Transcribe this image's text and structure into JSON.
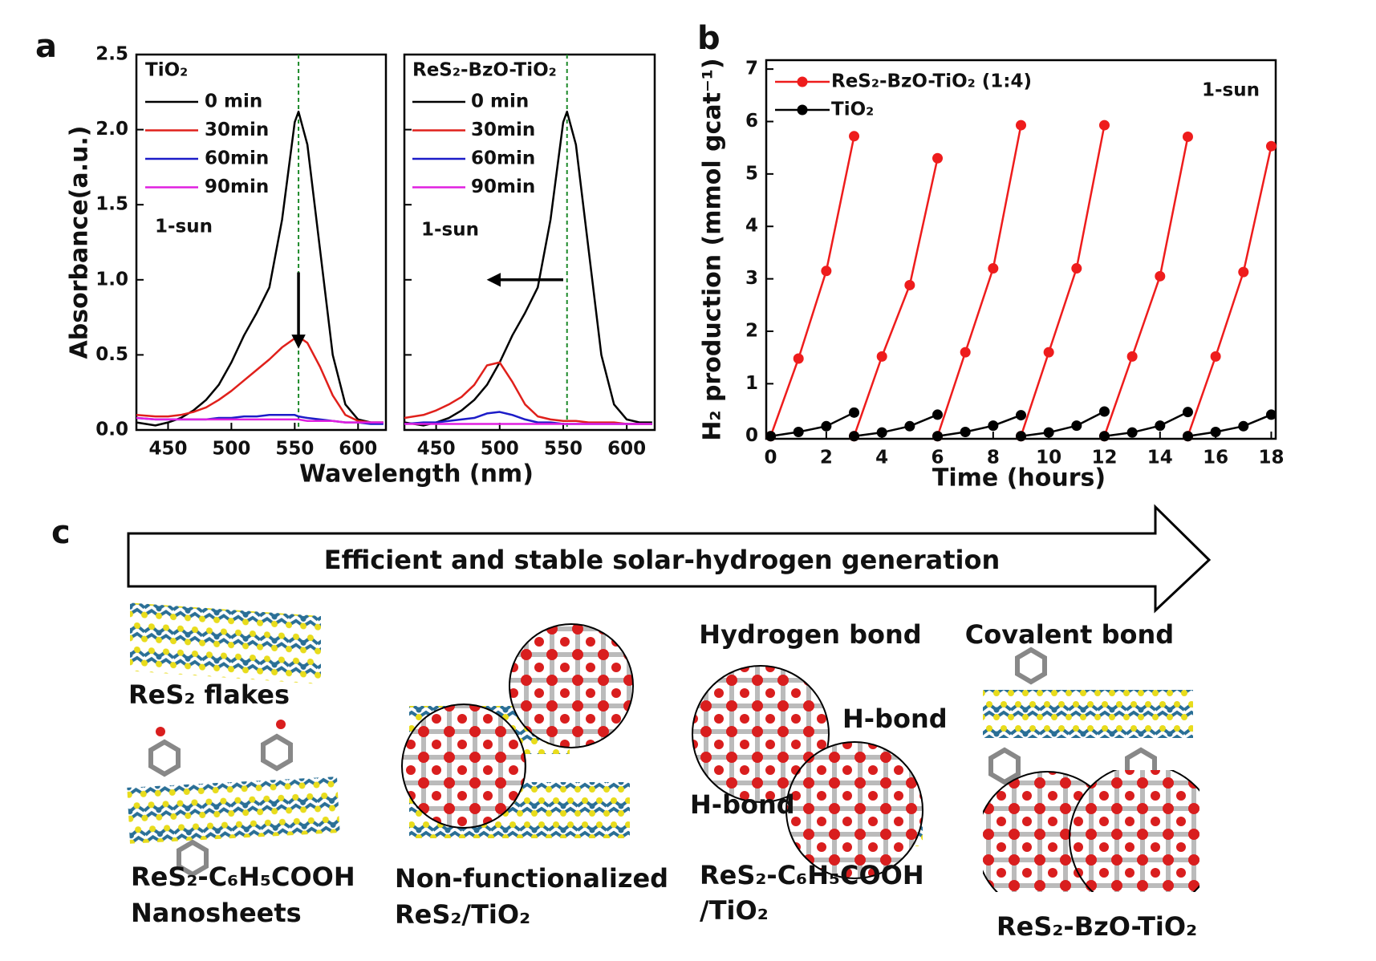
{
  "chart_data": [
    {
      "type": "line",
      "panel_label": "a",
      "title": "TiO₂",
      "annotation": "1-sun",
      "ylabel": "Absorbance(a.u.)",
      "xlabel": "Wavelength (nm)",
      "x": [
        425,
        440,
        450,
        460,
        470,
        480,
        490,
        500,
        510,
        520,
        530,
        540,
        550,
        553,
        560,
        570,
        580,
        590,
        600,
        610,
        620
      ],
      "series": [
        {
          "name": "0 min",
          "color": "#000000",
          "values": [
            0.05,
            0.03,
            0.05,
            0.08,
            0.13,
            0.2,
            0.3,
            0.45,
            0.63,
            0.78,
            0.95,
            1.4,
            2.05,
            2.12,
            1.9,
            1.2,
            0.5,
            0.17,
            0.07,
            0.05,
            0.05
          ]
        },
        {
          "name": "30min",
          "color": "#e0201b",
          "values": [
            0.1,
            0.09,
            0.09,
            0.1,
            0.12,
            0.15,
            0.2,
            0.26,
            0.33,
            0.4,
            0.47,
            0.55,
            0.61,
            0.62,
            0.58,
            0.42,
            0.23,
            0.1,
            0.06,
            0.05,
            0.05
          ]
        },
        {
          "name": "60min",
          "color": "#1c1cc8",
          "values": [
            0.08,
            0.07,
            0.07,
            0.07,
            0.07,
            0.07,
            0.08,
            0.08,
            0.09,
            0.09,
            0.1,
            0.1,
            0.1,
            0.09,
            0.08,
            0.07,
            0.06,
            0.05,
            0.05,
            0.04,
            0.04
          ]
        },
        {
          "name": "90min",
          "color": "#e020e0",
          "values": [
            0.08,
            0.07,
            0.07,
            0.07,
            0.07,
            0.07,
            0.07,
            0.07,
            0.07,
            0.07,
            0.07,
            0.07,
            0.07,
            0.07,
            0.06,
            0.06,
            0.06,
            0.05,
            0.05,
            0.05,
            0.05
          ]
        }
      ],
      "reference_x": 553,
      "arrow": {
        "x": [
          553,
          553
        ],
        "y": [
          1.05,
          0.56
        ]
      },
      "xlim": [
        425,
        622
      ],
      "xticks": [
        450,
        500,
        550,
        600
      ],
      "ylim": [
        0,
        2.5
      ],
      "yticks": [
        {
          "value": 0,
          "label": "0.0"
        },
        0.5,
        {
          "value": 1,
          "label": "1.0"
        },
        1.5,
        {
          "value": 2,
          "label": "2.0"
        },
        2.5
      ],
      "show_ytick_labels": true,
      "legend": "upper left"
    },
    {
      "type": "line",
      "title": "ReS₂-BzO-TiO₂",
      "annotation": "1-sun",
      "x": [
        425,
        440,
        450,
        460,
        470,
        480,
        490,
        500,
        510,
        520,
        530,
        540,
        550,
        553,
        560,
        570,
        580,
        590,
        600,
        610,
        620
      ],
      "series": [
        {
          "name": "0 min",
          "color": "#000000",
          "values": [
            0.05,
            0.03,
            0.05,
            0.08,
            0.13,
            0.2,
            0.3,
            0.45,
            0.63,
            0.78,
            0.95,
            1.4,
            2.05,
            2.12,
            1.9,
            1.2,
            0.5,
            0.17,
            0.07,
            0.05,
            0.05
          ]
        },
        {
          "name": "30min",
          "color": "#e0201b",
          "values": [
            0.08,
            0.1,
            0.13,
            0.17,
            0.22,
            0.3,
            0.43,
            0.45,
            0.32,
            0.17,
            0.09,
            0.07,
            0.06,
            0.06,
            0.06,
            0.05,
            0.05,
            0.05,
            0.04,
            0.04,
            0.04
          ]
        },
        {
          "name": "60min",
          "color": "#1c1cc8",
          "values": [
            0.04,
            0.05,
            0.05,
            0.06,
            0.07,
            0.08,
            0.11,
            0.12,
            0.1,
            0.07,
            0.05,
            0.05,
            0.04,
            0.04,
            0.04,
            0.04,
            0.04,
            0.04,
            0.04,
            0.04,
            0.04
          ]
        },
        {
          "name": "90min",
          "color": "#e020e0",
          "values": [
            0.04,
            0.04,
            0.04,
            0.04,
            0.04,
            0.04,
            0.04,
            0.04,
            0.04,
            0.04,
            0.04,
            0.04,
            0.04,
            0.04,
            0.04,
            0.04,
            0.04,
            0.04,
            0.04,
            0.04,
            0.04
          ]
        }
      ],
      "reference_x": 553,
      "arrow": {
        "x": [
          550,
          492
        ],
        "y": [
          1.0,
          1.0
        ]
      },
      "xlim": [
        425,
        622
      ],
      "xticks": [
        450,
        500,
        550,
        600
      ],
      "ylim": [
        0,
        2.5
      ],
      "yticks": [
        0,
        0.5,
        1,
        1.5,
        2,
        2.5
      ],
      "show_ytick_labels": false,
      "legend": "upper left"
    },
    {
      "type": "line",
      "panel_label": "b",
      "annotation": "1-sun",
      "ylabel": "H₂ production (mmol gcat⁻¹)",
      "xlabel": "Time (hours)",
      "markers": true,
      "x": [
        0,
        1,
        2,
        3,
        3,
        3,
        4,
        5,
        6,
        6,
        6,
        7,
        8,
        9,
        9,
        9,
        10,
        11,
        12,
        12,
        12,
        13,
        14,
        15,
        15,
        15,
        16,
        17,
        18
      ],
      "series": [
        {
          "name": "ReS₂-BzO-TiO₂ (1:4)",
          "color": "#ee1c1c",
          "values": [
            0,
            1.48,
            3.15,
            5.72,
            null,
            0,
            1.52,
            2.88,
            5.3,
            null,
            0,
            1.6,
            3.2,
            5.93,
            null,
            0,
            1.6,
            3.2,
            5.93,
            null,
            0,
            1.52,
            3.05,
            5.71,
            null,
            0,
            1.52,
            3.13,
            5.53
          ]
        },
        {
          "name": "TiO₂",
          "color": "#000000",
          "values": [
            0,
            0.08,
            0.19,
            0.45,
            null,
            0,
            0.07,
            0.19,
            0.41,
            null,
            0,
            0.08,
            0.2,
            0.4,
            null,
            0,
            0.07,
            0.2,
            0.47,
            null,
            0,
            0.07,
            0.2,
            0.46,
            null,
            0,
            0.08,
            0.19,
            0.41
          ]
        }
      ],
      "xlim": [
        -0.16,
        18.16
      ],
      "xticks": [
        0,
        2,
        4,
        6,
        8,
        10,
        12,
        14,
        16,
        18
      ],
      "ylim": [
        -0.05,
        7.17
      ],
      "yticks": [
        0,
        1,
        2,
        3,
        4,
        5,
        6,
        7
      ],
      "show_ytick_labels": true,
      "legend": "upper left"
    }
  ],
  "diagram": {
    "panel_label": "c",
    "arrow_text": "Efficient and stable solar-hydrogen generation",
    "items": [
      {
        "lines": [
          "ReS₂ flakes"
        ]
      },
      {
        "lines": [
          "ReS₂-C₆H₅COOH",
          "Nanosheets"
        ]
      },
      {
        "lines": [
          "Non-functionalized",
          "ReS₂/TiO₂"
        ]
      },
      {
        "heading": "Hydrogen bond",
        "notes": [
          "H-bond",
          "H-bond"
        ],
        "lines": [
          "ReS₂-C₆H₅COOH",
          "/TiO₂"
        ]
      },
      {
        "heading": "Covalent bond",
        "lines": [
          "ReS₂-BzO-TiO₂"
        ]
      }
    ]
  }
}
